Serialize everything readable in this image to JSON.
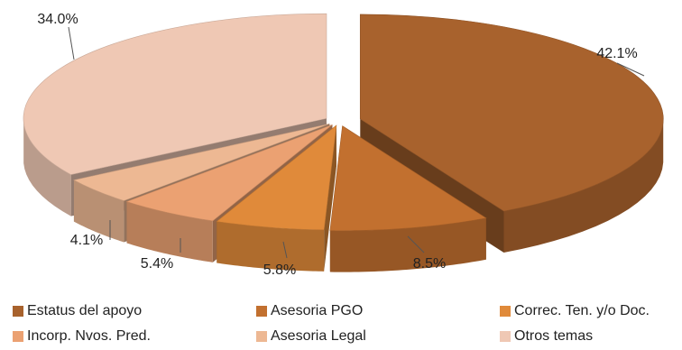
{
  "chart_data": {
    "type": "pie",
    "title": "",
    "style": "3d-exploded",
    "slices": [
      {
        "name": "Estatus del apoyo",
        "value": 42.1,
        "label": "42.1%",
        "color": "#A8622D"
      },
      {
        "name": "Asesoria PGO",
        "value": 8.5,
        "label": "8.5%",
        "color": "#C2702F"
      },
      {
        "name": "Correc. Ten. y/o Doc.",
        "value": 5.8,
        "label": "5.8%",
        "color": "#E08A3A"
      },
      {
        "name": "Incorp. Nvos. Pred.",
        "value": 5.4,
        "label": "5.4%",
        "color": "#EBA172"
      },
      {
        "name": "Asesoria Legal",
        "value": 4.1,
        "label": "4.1%",
        "color": "#EDB893"
      },
      {
        "name": "Otros temas",
        "value": 34.0,
        "label": "34.0%",
        "color": "#EFC8B4"
      }
    ],
    "legend": {
      "position": "bottom",
      "items": [
        {
          "label": "Estatus del apoyo",
          "color": "#A8622D"
        },
        {
          "label": "Asesoria PGO",
          "color": "#C2702F"
        },
        {
          "label": "Correc. Ten. y/o Doc.",
          "color": "#E08A3A"
        },
        {
          "label": "Incorp. Nvos. Pred.",
          "color": "#EBA172"
        },
        {
          "label": "Asesoria Legal",
          "color": "#EDB893"
        },
        {
          "label": "Otros temas",
          "color": "#EFC8B4"
        }
      ]
    }
  }
}
